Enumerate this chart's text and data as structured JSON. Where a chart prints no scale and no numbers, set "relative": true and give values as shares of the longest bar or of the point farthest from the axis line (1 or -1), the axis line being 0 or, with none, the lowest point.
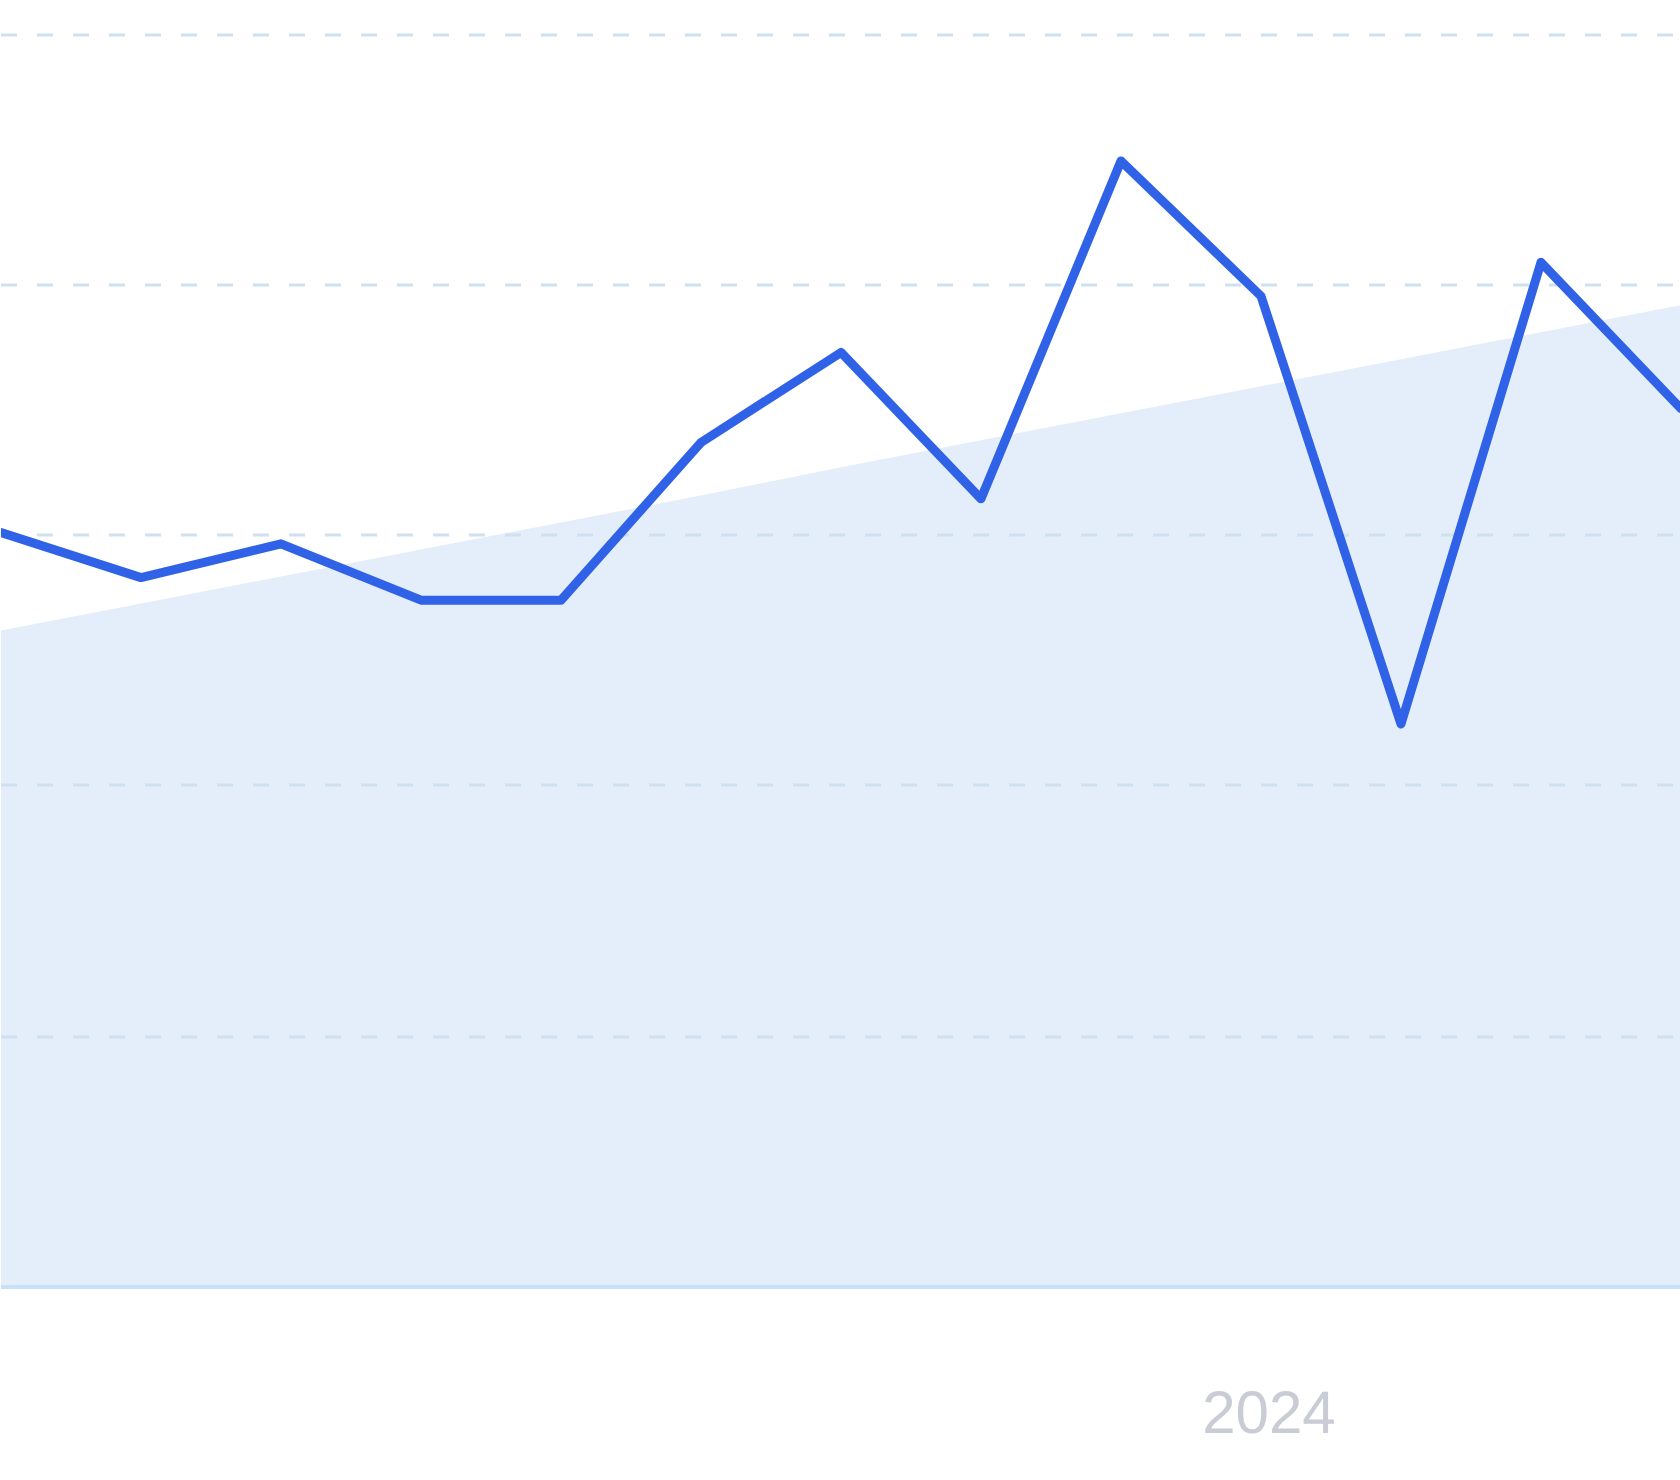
{
  "chart_data": {
    "type": "line",
    "relative": true,
    "categories": [
      null,
      null,
      null,
      null,
      null,
      null,
      null,
      null,
      null,
      null,
      null,
      null,
      null
    ],
    "series": [
      {
        "type": "area",
        "color": "#e4eefb",
        "values": [
          0.583,
          0.607,
          0.631,
          0.655,
          0.679,
          0.703,
          0.728,
          0.752,
          0.776,
          0.8,
          0.824,
          0.848,
          0.872
        ]
      },
      {
        "color": "#2f62e6",
        "values": [
          0.67,
          0.63,
          0.66,
          0.61,
          0.61,
          0.75,
          0.83,
          0.7,
          1.0,
          0.88,
          0.5,
          0.91,
          0.78
        ]
      }
    ],
    "grid": "y",
    "annotations": [
      "2024"
    ]
  }
}
